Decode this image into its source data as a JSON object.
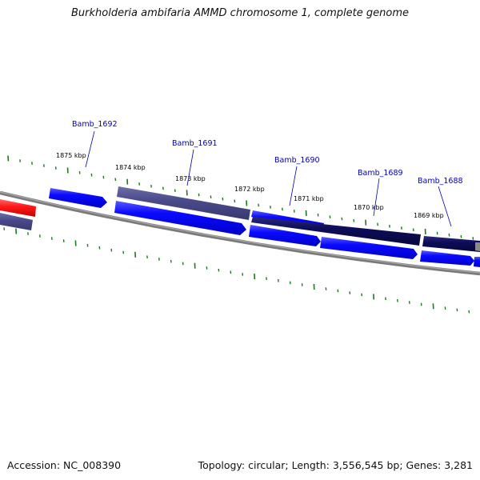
{
  "title": "Burkholderia ambifaria AMMD chromosome 1, complete genome",
  "accession_label": "Accession: NC_008390",
  "summary_label": "Topology: circular; Length: 3,556,545 bp; Genes: 3,281",
  "colors": {
    "backbone": "#808080",
    "tick": "#1e7a1e",
    "gene_blue": "#0a0aff",
    "gene_slate": "#4b4b8c",
    "gene_navy": "#0d0d5a",
    "gene_red": "#ff1a1a",
    "label": "#0000b4"
  },
  "scale_labels": [
    "1875 kbp",
    "1874 kbp",
    "1873 kbp",
    "1872 kbp",
    "1871 kbp",
    "1870 kbp",
    "1869 kbp"
  ],
  "gene_labels": [
    "Bamb_1692",
    "Bamb_1691",
    "Bamb_1690",
    "Bamb_1689",
    "Bamb_1688"
  ]
}
